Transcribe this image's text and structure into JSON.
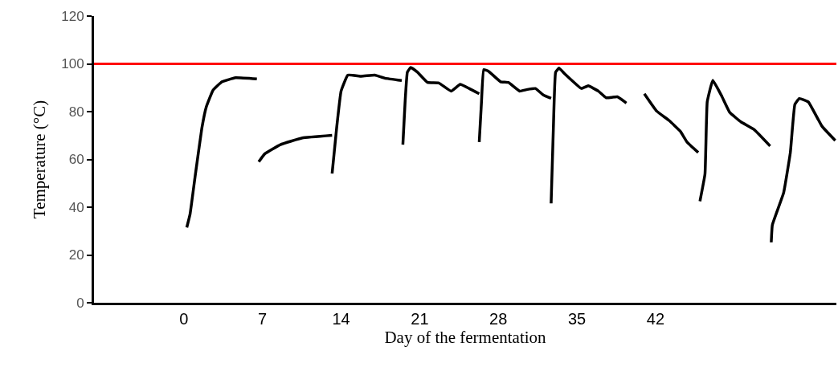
{
  "chart_data": {
    "type": "line",
    "xlabel": "Day of the fermentation",
    "ylabel": "Temperature (°C)",
    "xlim": [
      -8,
      58.1
    ],
    "xticks": [
      0,
      7,
      14,
      21,
      28,
      35,
      42
    ],
    "ylim": [
      0,
      120
    ],
    "yticks": [
      0,
      20,
      40,
      60,
      80,
      100,
      120
    ],
    "marker": "none",
    "line_style": "solid",
    "ref_lines": [
      {
        "axis": "y",
        "value": 100,
        "color": "#ff0000",
        "line_style": "solid"
      }
    ],
    "series": [
      {
        "color": "#000000",
        "x": [
          0.26,
          0.55,
          1.0,
          1.6,
          2.0,
          2.6,
          3.4,
          4.6,
          6.5
        ],
        "values": [
          31.5,
          37,
          52.8,
          73,
          82,
          89,
          92.5,
          94.2,
          93.7
        ]
      },
      {
        "color": "#000000",
        "x": [
          6.67,
          7.2,
          8.6,
          10.55,
          13.2
        ],
        "values": [
          59,
          62.3,
          66.2,
          69,
          70.1
        ]
      },
      {
        "color": "#000000",
        "x": [
          13.2,
          13.6,
          14.0,
          14.6,
          15.8,
          17.0,
          17.9,
          19.4
        ],
        "values": [
          54.1,
          73,
          88.6,
          95.3,
          94.8,
          95.3,
          94,
          93
        ]
      },
      {
        "color": "#000000",
        "x": [
          19.5,
          19.7,
          19.9,
          20.2,
          20.8,
          21.7,
          22.7,
          23.8,
          24.6,
          25.4,
          26.3
        ],
        "values": [
          66.2,
          84.1,
          96.5,
          98.5,
          96.5,
          92.2,
          92,
          88.6,
          91.4,
          89.7,
          87.5
        ]
      },
      {
        "color": "#000000",
        "x": [
          26.3,
          26.5,
          26.7,
          27.1,
          28.2,
          28.9,
          29.9,
          30.5,
          31.3,
          32.0,
          32.7
        ],
        "values": [
          67.3,
          84.1,
          97.6,
          97,
          92.5,
          92.2,
          88.6,
          89.2,
          89.7,
          87,
          85.6
        ]
      },
      {
        "color": "#000000",
        "x": [
          32.7,
          32.9,
          33.1,
          33.4,
          33.9,
          35.4,
          36.0,
          36.9,
          37.6,
          38.6,
          39.4
        ],
        "values": [
          41.6,
          73,
          96.5,
          98.2,
          95.9,
          89.7,
          90.8,
          88.6,
          85.8,
          86.2,
          83.6
        ]
      },
      {
        "color": "#000000",
        "x": [
          41.0,
          42.1,
          43.2,
          44.2,
          44.8,
          45.8
        ],
        "values": [
          87.5,
          80.2,
          76.3,
          71.8,
          67.3,
          62.9
        ]
      },
      {
        "color": "#000000",
        "x": [
          45.95,
          46.4,
          46.6,
          47.1,
          47.9,
          48.6,
          49.6,
          50.8,
          52.2
        ],
        "values": [
          42.5,
          53.9,
          84.1,
          93.1,
          86.4,
          79.7,
          75.7,
          72.4,
          65.6
        ]
      },
      {
        "color": "#000000",
        "x": [
          52.3,
          52.4,
          53.4,
          54.0,
          54.4,
          54.8,
          55.6,
          56.8,
          58.0
        ],
        "values": [
          25.3,
          32.6,
          46,
          62.9,
          83,
          85.5,
          84.1,
          74,
          67.9
        ]
      }
    ]
  }
}
